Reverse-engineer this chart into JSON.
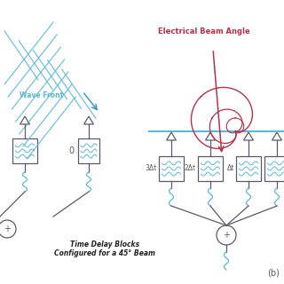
{
  "bg_color": "#ffffff",
  "blue": "#5bb8d4",
  "dark_blue": "#3a9abf",
  "red": "#b5324a",
  "black": "#222222",
  "gray": "#5a5a6a",
  "wave_color": "#5bb8d4",
  "title_left": "Wave Front",
  "label_delay_1": "Time Delay Blocks",
  "label_delay_2": "Configured for a 45° Beam",
  "label_beam_angle": "Electrical Beam Angle",
  "label_b": "(b)",
  "label_3dt": "3Δt",
  "label_2dt": "2Δt",
  "label_dt": "Δt",
  "label_0": "0",
  "label_plus": "+"
}
